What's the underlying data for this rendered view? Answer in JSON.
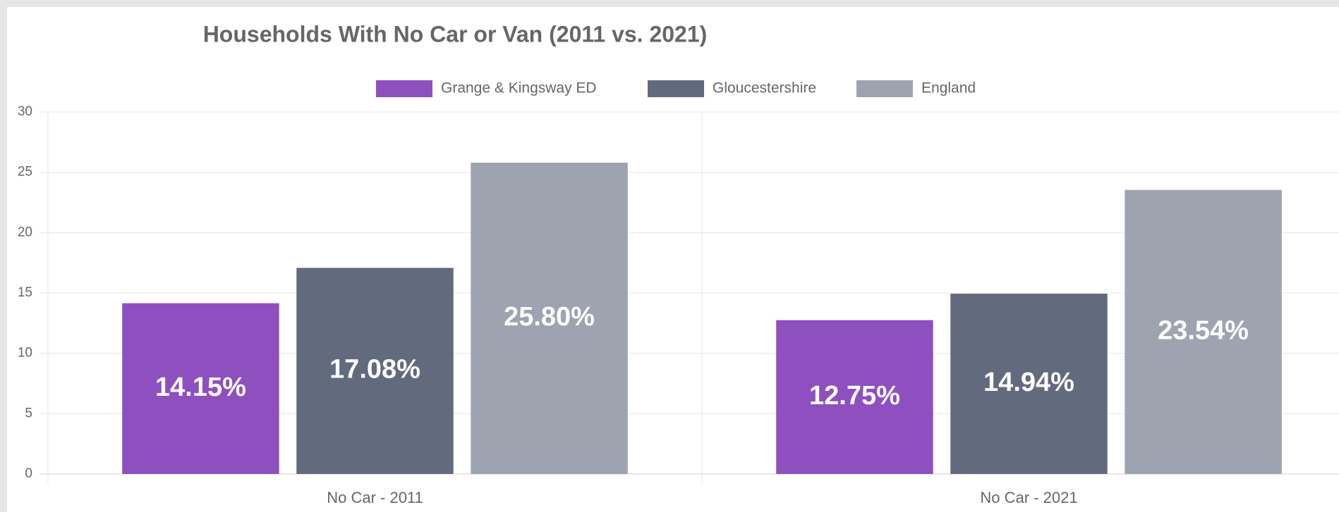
{
  "chart_data": {
    "type": "bar",
    "title": "Households With No Car or Van (2011 vs. 2021)",
    "categories": [
      "No Car - 2011",
      "No Car - 2021"
    ],
    "series": [
      {
        "name": "Grange & Kingsway ED",
        "color": "#8e4fbf",
        "values": [
          14.15,
          12.75
        ],
        "value_labels": [
          "14.15%",
          "12.75%"
        ]
      },
      {
        "name": "Gloucestershire",
        "color": "#616b7d",
        "values": [
          17.08,
          14.94
        ],
        "value_labels": [
          "17.08%",
          "14.94%"
        ]
      },
      {
        "name": "England",
        "color": "#9ea3b0",
        "values": [
          25.8,
          23.54
        ],
        "value_labels": [
          "25.80%",
          "23.54%"
        ]
      }
    ],
    "ylim": [
      0,
      30
    ],
    "yticks": [
      0,
      5,
      10,
      15,
      20,
      25,
      30
    ],
    "grid": true,
    "legend": "top"
  }
}
